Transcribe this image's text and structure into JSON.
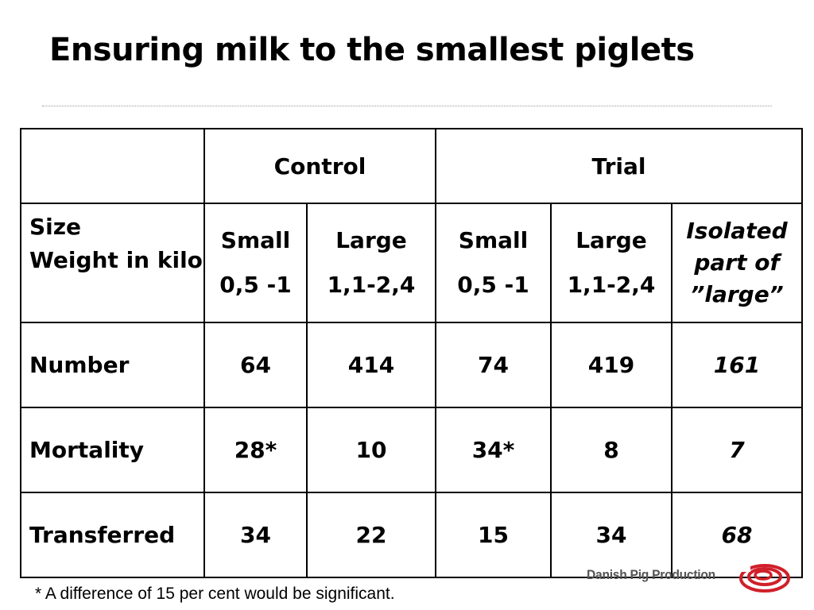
{
  "title": "Ensuring milk to the smallest piglets",
  "table": {
    "header": {
      "corner": "",
      "control": "Control",
      "trial": "Trial"
    },
    "size_row": {
      "label_line1": "Size",
      "label_line2": "Weight in kilo",
      "columns": [
        {
          "size": "Small",
          "weight": "0,5 -1"
        },
        {
          "size": "Large",
          "weight": "1,1-2,4"
        },
        {
          "size": "Small",
          "weight": "0,5 -1"
        },
        {
          "size": "Large",
          "weight": "1,1-2,4"
        }
      ],
      "isolated_lines": [
        "Isolated",
        "part of",
        "”large”"
      ]
    },
    "rows": [
      {
        "label": "Number",
        "values": [
          "64",
          "414",
          "74",
          "419",
          "161"
        ]
      },
      {
        "label": "Mortality",
        "values": [
          "28*",
          "10",
          "34*",
          "8",
          "7"
        ]
      },
      {
        "label": "Transferred",
        "values": [
          "34",
          "22",
          "15",
          "34",
          "68"
        ]
      }
    ]
  },
  "footnote": "* A difference of 15 per cent would be significant.",
  "logo": {
    "text": "Danish Pig Production",
    "colors": {
      "primary": "#d0202a",
      "text": "#555555"
    }
  }
}
